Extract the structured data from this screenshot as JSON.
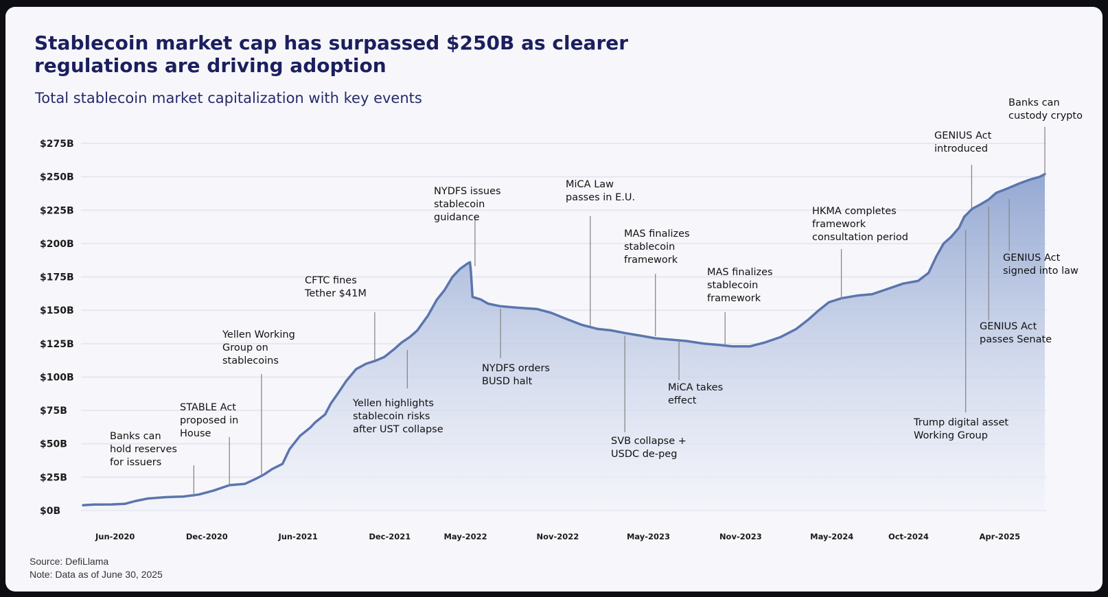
{
  "title": "Stablecoin market cap has surpassed $250B as clearer regulations are driving adoption",
  "subtitle": "Total stablecoin market capitalization with key events",
  "footer": {
    "source": "Source: DefiLlama",
    "note": "Note: Data as of June 30, 2025"
  },
  "chart_data": {
    "type": "area",
    "title": "Stablecoin market cap has surpassed $250B as clearer regulations are driving adoption",
    "subtitle": "Total stablecoin market capitalization with key events",
    "xlabel": "",
    "ylabel": "",
    "ylim": [
      0,
      275
    ],
    "x_range": [
      "2020-03-29",
      "2025-06-30"
    ],
    "grid": true,
    "legend": "none",
    "colors": {
      "line": "#5b75ad",
      "fill_top": "#8fa4d0",
      "fill_bottom": "#f1f3fa"
    },
    "y_ticks": [
      {
        "value": 0,
        "label": "$0B"
      },
      {
        "value": 25,
        "label": "$25B"
      },
      {
        "value": 50,
        "label": "$50B"
      },
      {
        "value": 75,
        "label": "$75B"
      },
      {
        "value": 100,
        "label": "$100B"
      },
      {
        "value": 125,
        "label": "$125B"
      },
      {
        "value": 150,
        "label": "$150B"
      },
      {
        "value": 175,
        "label": "$175B"
      },
      {
        "value": 200,
        "label": "$200B"
      },
      {
        "value": 225,
        "label": "$225B"
      },
      {
        "value": 250,
        "label": "$250B"
      },
      {
        "value": 275,
        "label": "$275B"
      }
    ],
    "x_ticks": [
      {
        "date": "2020-06-01",
        "label": "Jun-2020"
      },
      {
        "date": "2020-12-01",
        "label": "Dec-2020"
      },
      {
        "date": "2021-06-01",
        "label": "Jun-2021"
      },
      {
        "date": "2021-12-01",
        "label": "Dec-2021"
      },
      {
        "date": "2022-05-01",
        "label": "May-2022"
      },
      {
        "date": "2022-11-01",
        "label": "Nov-2022"
      },
      {
        "date": "2023-05-01",
        "label": "May-2023"
      },
      {
        "date": "2023-11-01",
        "label": "Nov-2023"
      },
      {
        "date": "2024-05-01",
        "label": "May-2024"
      },
      {
        "date": "2024-10-01",
        "label": "Oct-2024"
      },
      {
        "date": "2025-04-01",
        "label": "Apr-2025"
      }
    ],
    "series": [
      {
        "points": [
          [
            "2020-03-29",
            4
          ],
          [
            "2020-04-20",
            4.5
          ],
          [
            "2020-05-25",
            4.6
          ],
          [
            "2020-06-20",
            5
          ],
          [
            "2020-07-10",
            7
          ],
          [
            "2020-08-05",
            9
          ],
          [
            "2020-09-10",
            10
          ],
          [
            "2020-10-15",
            10.5
          ],
          [
            "2020-11-15",
            12
          ],
          [
            "2020-12-15",
            15
          ],
          [
            "2021-01-15",
            19
          ],
          [
            "2021-02-15",
            20
          ],
          [
            "2021-03-10",
            24
          ],
          [
            "2021-03-25",
            27
          ],
          [
            "2021-04-10",
            31
          ],
          [
            "2021-05-01",
            35
          ],
          [
            "2021-05-15",
            46
          ],
          [
            "2021-06-05",
            56
          ],
          [
            "2021-06-25",
            62
          ],
          [
            "2021-07-05",
            66
          ],
          [
            "2021-07-25",
            72
          ],
          [
            "2021-08-05",
            80
          ],
          [
            "2021-08-20",
            88
          ],
          [
            "2021-09-05",
            97
          ],
          [
            "2021-09-25",
            106
          ],
          [
            "2021-10-15",
            110
          ],
          [
            "2021-11-01",
            112
          ],
          [
            "2021-11-20",
            115
          ],
          [
            "2021-12-10",
            121
          ],
          [
            "2021-12-25",
            126
          ],
          [
            "2022-01-10",
            130
          ],
          [
            "2022-01-25",
            135
          ],
          [
            "2022-02-15",
            146
          ],
          [
            "2022-03-05",
            158
          ],
          [
            "2022-03-20",
            165
          ],
          [
            "2022-04-05",
            175
          ],
          [
            "2022-04-20",
            181
          ],
          [
            "2022-05-05",
            185
          ],
          [
            "2022-05-10",
            186
          ],
          [
            "2022-05-12",
            178
          ],
          [
            "2022-05-15",
            160
          ],
          [
            "2022-06-01",
            158
          ],
          [
            "2022-06-15",
            155
          ],
          [
            "2022-07-10",
            153
          ],
          [
            "2022-08-10",
            152
          ],
          [
            "2022-09-20",
            151
          ],
          [
            "2022-10-20",
            148
          ],
          [
            "2022-11-15",
            144
          ],
          [
            "2022-12-20",
            139
          ],
          [
            "2023-01-20",
            136
          ],
          [
            "2023-02-15",
            135
          ],
          [
            "2023-03-15",
            133
          ],
          [
            "2023-04-15",
            131
          ],
          [
            "2023-05-15",
            129
          ],
          [
            "2023-06-15",
            128
          ],
          [
            "2023-07-15",
            127
          ],
          [
            "2023-08-20",
            125
          ],
          [
            "2023-09-20",
            124
          ],
          [
            "2023-10-15",
            123
          ],
          [
            "2023-11-20",
            123
          ],
          [
            "2023-12-20",
            126
          ],
          [
            "2024-01-20",
            130
          ],
          [
            "2024-02-20",
            136
          ],
          [
            "2024-03-15",
            143
          ],
          [
            "2024-04-05",
            150
          ],
          [
            "2024-04-25",
            156
          ],
          [
            "2024-05-20",
            159
          ],
          [
            "2024-06-20",
            161
          ],
          [
            "2024-07-20",
            162
          ],
          [
            "2024-08-20",
            166
          ],
          [
            "2024-09-20",
            170
          ],
          [
            "2024-10-20",
            172
          ],
          [
            "2024-11-10",
            178
          ],
          [
            "2024-11-25",
            190
          ],
          [
            "2024-12-10",
            200
          ],
          [
            "2024-12-25",
            205
          ],
          [
            "2025-01-10",
            212
          ],
          [
            "2025-01-20",
            220
          ],
          [
            "2025-02-05",
            226
          ],
          [
            "2025-02-20",
            229
          ],
          [
            "2025-03-10",
            233
          ],
          [
            "2025-03-25",
            238
          ],
          [
            "2025-04-15",
            241
          ],
          [
            "2025-05-10",
            245
          ],
          [
            "2025-06-01",
            248
          ],
          [
            "2025-06-20",
            250
          ],
          [
            "2025-06-30",
            252
          ]
        ]
      }
    ],
    "annotations": [
      {
        "lines": [
          "Banks can",
          "hold reserves",
          "for issuers"
        ],
        "date": "2020-11-05",
        "side": "above"
      },
      {
        "lines": [
          "STABLE Act",
          "proposed in",
          "House"
        ],
        "date": "2021-01-15",
        "side": "above"
      },
      {
        "lines": [
          "Yellen Working",
          "Group on",
          "stablecoins"
        ],
        "date": "2021-03-20",
        "side": "above"
      },
      {
        "lines": [
          "CFTC fines",
          "Tether $41M"
        ],
        "date": "2021-11-01",
        "side": "above"
      },
      {
        "lines": [
          "Yellen highlights",
          "stablecoin risks",
          "after UST collapse"
        ],
        "date": "2022-01-05",
        "side": "below"
      },
      {
        "lines": [
          "NYDFS issues",
          "stablecoin",
          "guidance"
        ],
        "date": "2022-05-20",
        "side": "above"
      },
      {
        "lines": [
          "NYDFS orders",
          "BUSD halt"
        ],
        "date": "2022-07-10",
        "side": "below"
      },
      {
        "lines": [
          "MiCA Law",
          "passes in E.U."
        ],
        "date": "2023-01-05",
        "side": "above"
      },
      {
        "lines": [
          "MAS finalizes",
          "stablecoin",
          "framework"
        ],
        "date": "2023-05-15",
        "side": "above"
      },
      {
        "lines": [
          "SVB collapse +",
          "USDC de-peg"
        ],
        "date": "2023-03-15",
        "side": "below"
      },
      {
        "lines": [
          "MiCA takes",
          "effect"
        ],
        "date": "2023-07-01",
        "side": "below"
      },
      {
        "lines": [
          "MAS finalizes",
          "stablecoin",
          "framework"
        ],
        "date": "2023-10-01",
        "side": "above"
      },
      {
        "lines": [
          "HKMA completes",
          "framework",
          "consultation period"
        ],
        "date": "2024-05-20",
        "side": "above"
      },
      {
        "lines": [
          "Trump digital asset",
          "Working Group"
        ],
        "date": "2025-01-23",
        "side": "below"
      },
      {
        "lines": [
          "GENIUS Act",
          "introduced"
        ],
        "date": "2025-02-04",
        "side": "above"
      },
      {
        "lines": [
          "GENIUS Act",
          "passes Senate"
        ],
        "date": "2025-03-10",
        "side": "below"
      },
      {
        "lines": [
          "GENIUS Act",
          "signed into law"
        ],
        "date": "2025-04-20",
        "side": "below"
      },
      {
        "lines": [
          "Banks can",
          "custody crypto"
        ],
        "date": "2025-06-30",
        "side": "above"
      }
    ]
  }
}
